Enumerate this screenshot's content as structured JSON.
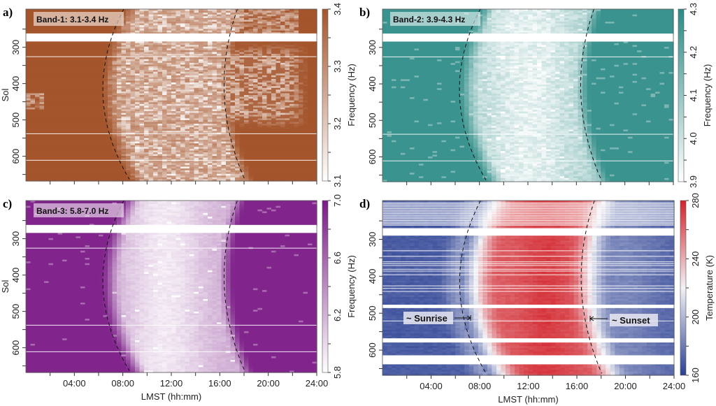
{
  "chart_data": [
    {
      "panel": "a)",
      "type": "heatmap",
      "label": "Band-1: 3.1-3.4 Hz",
      "ylabel": "Sol",
      "xlabel": "",
      "xlim_hours": [
        0,
        24
      ],
      "ylim_sol": [
        195,
        668
      ],
      "yticks": [
        "300",
        "400",
        "500",
        "600"
      ],
      "xticks": [],
      "colorbar": {
        "label": "Frequency (Hz)",
        "range": [
          3.1,
          3.4
        ],
        "ticks": [
          "3.1",
          "3.2",
          "3.3",
          "3.4"
        ],
        "colors": [
          "#ffffff",
          "#a4552c"
        ]
      },
      "pattern": "freq_a"
    },
    {
      "panel": "b)",
      "type": "heatmap",
      "label": "Band-2: 3.9-4.3 Hz",
      "ylabel": "",
      "xlabel": "",
      "xlim_hours": [
        0,
        24
      ],
      "ylim_sol": [
        195,
        668
      ],
      "yticks": [
        "300",
        "400",
        "500",
        "600"
      ],
      "xticks": [],
      "colorbar": {
        "label": "Frequency (Hz)",
        "range": [
          3.9,
          4.3
        ],
        "ticks": [
          "3.9",
          "4.0",
          "4.1",
          "4.2",
          "4.3"
        ],
        "colors": [
          "#ffffff",
          "#2a8a85"
        ]
      },
      "pattern": "freq_b"
    },
    {
      "panel": "c)",
      "type": "heatmap",
      "label": "Band-3: 5.8-7.0 Hz",
      "ylabel": "Sol",
      "xlabel": "LMST (hh:mm)",
      "xlim_hours": [
        0,
        24
      ],
      "ylim_sol": [
        195,
        668
      ],
      "yticks": [
        "300",
        "400",
        "500",
        "600"
      ],
      "xticks": [
        "04:00",
        "08:00",
        "12:00",
        "16:00",
        "20:00",
        "24:00"
      ],
      "colorbar": {
        "label": "Frequency (Hz)",
        "range": [
          5.8,
          7.0
        ],
        "ticks": [
          "5.8",
          "6.2",
          "6.6",
          "7.0"
        ],
        "colors": [
          "#ffffff",
          "#7a1a86"
        ]
      },
      "pattern": "freq_c"
    },
    {
      "panel": "d)",
      "type": "heatmap",
      "label": "",
      "ylabel": "",
      "xlabel": "LMST (hh:mm)",
      "xlim_hours": [
        0,
        24
      ],
      "ylim_sol": [
        195,
        668
      ],
      "yticks": [
        "300",
        "400",
        "500",
        "600"
      ],
      "xticks": [
        "04:00",
        "08:00",
        "12:00",
        "16:00",
        "20:00",
        "24:00"
      ],
      "colorbar": {
        "label": "Temperature (K)",
        "range": [
          160,
          280
        ],
        "ticks": [
          "160",
          "200",
          "240",
          "280"
        ],
        "colors": [
          "#2b4093",
          "#f2f2f6",
          "#d3232a"
        ]
      },
      "annotations": {
        "sunrise": "~ Sunrise",
        "sunset": "~ Sunset"
      },
      "pattern": "temp"
    }
  ],
  "sunrise_curve": {
    "sol": [
      200,
      480,
      667
    ],
    "lmst_hours": [
      8.0,
      6.5,
      8.6
    ]
  },
  "sunset_curve": {
    "sol": [
      200,
      480,
      667
    ],
    "lmst_hours": [
      17.4,
      16.5,
      18.1
    ]
  },
  "data_gaps_sol": {
    "seismic": [
      [
        262,
        284
      ]
    ],
    "temperature": [
      [
        270,
        290
      ],
      [
        478,
        486
      ],
      [
        568,
        579
      ],
      [
        614,
        637
      ]
    ]
  }
}
